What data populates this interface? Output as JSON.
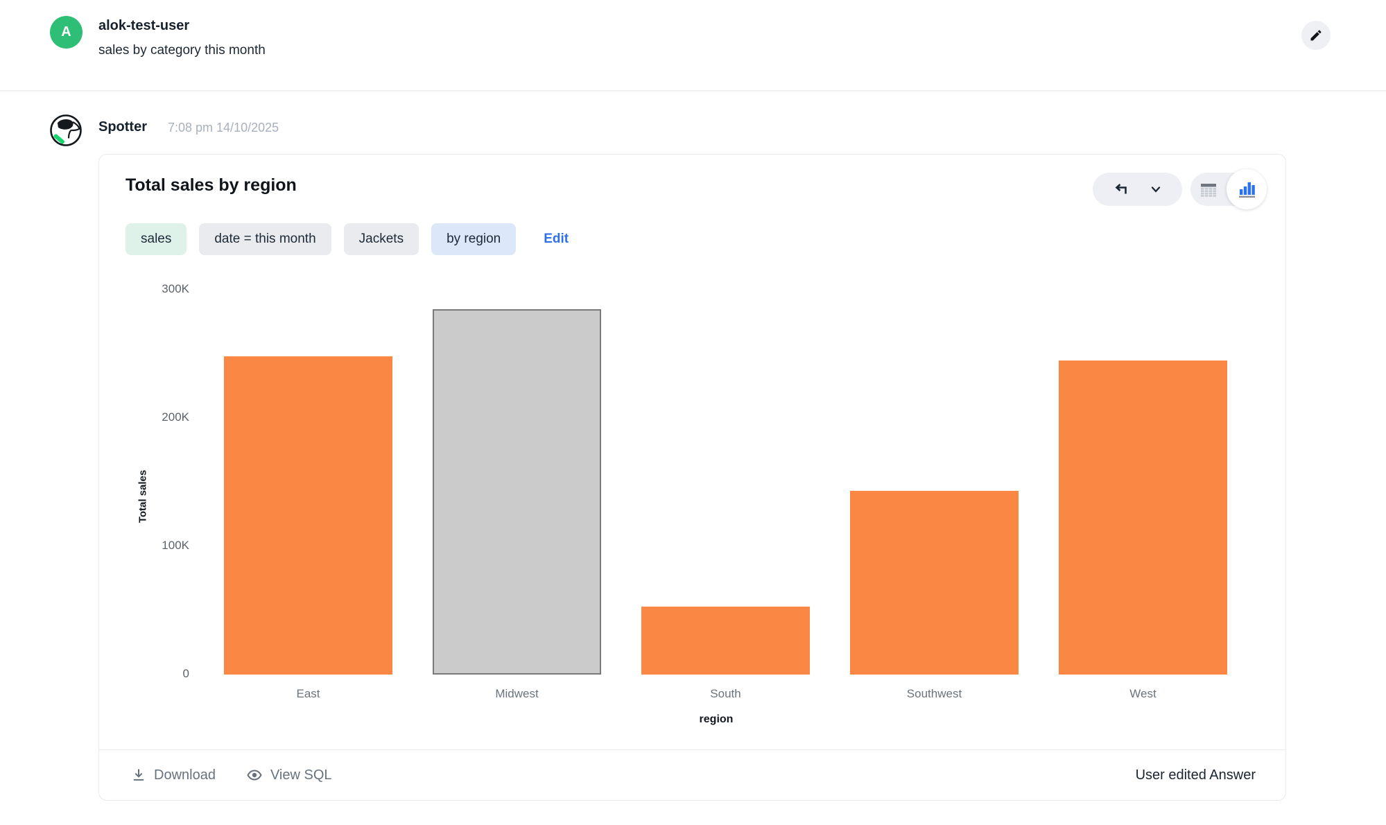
{
  "header": {
    "avatar_initial": "A",
    "username": "alok-test-user",
    "subtitle": "sales by category this month"
  },
  "message": {
    "sender": "Spotter",
    "timestamp": "7:08 pm 14/10/2025"
  },
  "card": {
    "title": "Total sales by region",
    "chips": [
      {
        "label": "sales",
        "type": "green"
      },
      {
        "label": "date = this month",
        "type": "gray"
      },
      {
        "label": "Jackets",
        "type": "gray"
      },
      {
        "label": "by region",
        "type": "blue"
      }
    ],
    "edit_label": "Edit",
    "footer": {
      "download_label": "Download",
      "view_sql_label": "View SQL",
      "status_label": "User edited Answer"
    }
  },
  "chart_data": {
    "type": "bar",
    "title": "Total sales by region",
    "categories": [
      "East",
      "Midwest",
      "South",
      "Southwest",
      "West"
    ],
    "values": [
      248000,
      285000,
      53000,
      143000,
      245000
    ],
    "xlabel": "region",
    "ylabel": "Total sales",
    "ylim": [
      0,
      300000
    ],
    "yticks": [
      {
        "label": "0",
        "value": 0
      },
      {
        "label": "100K",
        "value": 100000
      },
      {
        "label": "200K",
        "value": 200000
      },
      {
        "label": "300K",
        "value": 300000
      }
    ],
    "grid": false,
    "legend": "none",
    "bar_color": "#FA8743",
    "highlighted_index": 1,
    "highlighted_fill": "#CBCBCB",
    "highlighted_border": "#7A7A7A"
  },
  "colors": {
    "accent_blue": "#2B72EE",
    "avatar_green": "#2EBE76",
    "collar_green": "#17D56E"
  }
}
